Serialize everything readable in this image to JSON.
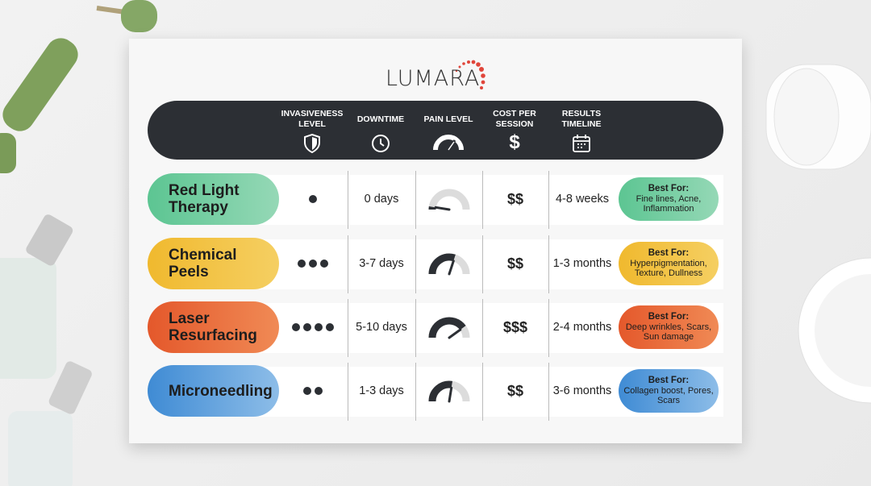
{
  "brand": {
    "name": "LUMARA",
    "accent": "#e0453a"
  },
  "header": {
    "columns": [
      {
        "label": "INVASIVENESS LEVEL",
        "icon": "shield-icon"
      },
      {
        "label": "DOWNTIME",
        "icon": "clock-icon"
      },
      {
        "label": "PAIN LEVEL",
        "icon": "gauge-icon"
      },
      {
        "label": "COST PER SESSION",
        "icon": "dollar-icon"
      },
      {
        "label": "RESULTS TIMELINE",
        "icon": "calendar-icon"
      }
    ]
  },
  "best_for_label": "Best For:",
  "treatments": [
    {
      "name": "Red Light Therapy",
      "color": [
        "#5cc592",
        "#95d8b6"
      ],
      "invasiveness": 1,
      "downtime": "0 days",
      "pain_level": 0.05,
      "cost": "$$",
      "results": "4-8 weeks",
      "best_for": "Fine lines, Acne, Inflammation"
    },
    {
      "name": "Chemical Peels",
      "color": [
        "#f0b92e",
        "#f5cf62"
      ],
      "invasiveness": 3,
      "downtime": "3-7 days",
      "pain_level": 0.6,
      "cost": "$$",
      "results": "1-3 months",
      "best_for": "Hyperpigmentation, Texture, Dullness"
    },
    {
      "name": "Laser Resurfacing",
      "color": [
        "#e4582b",
        "#f08a55"
      ],
      "invasiveness": 4,
      "downtime": "5-10 days",
      "pain_level": 0.8,
      "cost": "$$$",
      "results": "2-4 months",
      "best_for": "Deep wrinkles, Scars, Sun damage"
    },
    {
      "name": "Microneedling",
      "color": [
        "#3f8bd4",
        "#8dbde8"
      ],
      "invasiveness": 2,
      "downtime": "1-3 days",
      "pain_level": 0.55,
      "cost": "$$",
      "results": "3-6 months",
      "best_for": "Collagen boost, Pores, Scars"
    }
  ]
}
